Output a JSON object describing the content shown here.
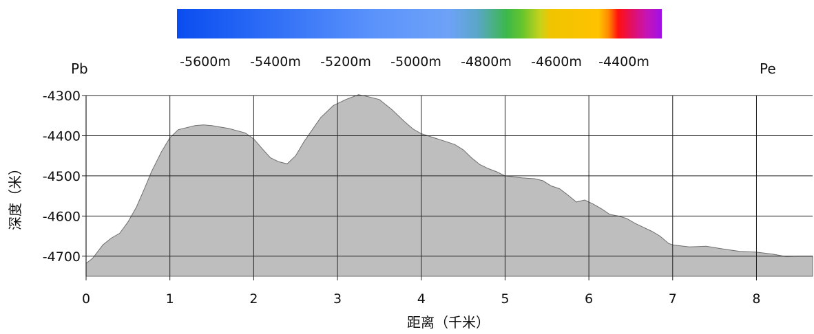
{
  "colorbar": {
    "labels": [
      "-5600m",
      "-5400m",
      "-5200m",
      "-5000m",
      "-4800m",
      "-4600m",
      "-4400m"
    ],
    "colors": [
      "#0a4cf0",
      "#2c6cf6",
      "#5a92fb",
      "#6ea2f8",
      "#5aa6c8",
      "#3cb84a",
      "#62c42e",
      "#c8d21a",
      "#f0c400",
      "#ffc200",
      "#ff8a00",
      "#ff1010",
      "#e0106a",
      "#c414b8",
      "#a010e6"
    ]
  },
  "endpoints": {
    "start": "Pb",
    "end": "Pe"
  },
  "chart_data": {
    "type": "area",
    "xlabel": "距离（千米）",
    "ylabel": "深度（米）",
    "xlim": [
      0,
      8.67
    ],
    "ylim": [
      -4750,
      -4300
    ],
    "xticks": [
      "0",
      "1",
      "2",
      "3",
      "4",
      "5",
      "6",
      "7",
      "8"
    ],
    "yticks": [
      "-4300",
      "-4400",
      "-4500",
      "-4600",
      "-4700"
    ],
    "grid": true,
    "fill_color": "#bebebe",
    "series": [
      {
        "x": [
          0,
          0.08,
          0.2,
          0.3,
          0.4,
          0.5,
          0.6,
          0.7,
          0.78,
          0.9,
          1.0,
          1.1,
          1.3,
          1.4,
          1.5,
          1.7,
          1.9,
          2.0,
          2.1,
          2.2,
          2.3,
          2.4,
          2.5,
          2.6,
          2.7,
          2.8,
          2.95,
          3.1,
          3.25,
          3.35,
          3.5,
          3.65,
          3.8,
          3.9,
          4.0,
          4.15,
          4.3,
          4.4,
          4.5,
          4.6,
          4.7,
          4.8,
          4.9,
          5.0,
          5.2,
          5.35,
          5.45,
          5.55,
          5.65,
          5.75,
          5.85,
          5.95,
          6.05,
          6.15,
          6.25,
          6.35,
          6.45,
          6.55,
          6.65,
          6.75,
          6.85,
          6.95,
          7.0,
          7.2,
          7.4,
          7.6,
          7.8,
          8.0,
          8.2,
          8.35,
          8.5,
          8.67
        ],
        "y": [
          -4718,
          -4705,
          -4672,
          -4655,
          -4643,
          -4615,
          -4578,
          -4530,
          -4490,
          -4440,
          -4405,
          -4385,
          -4375,
          -4373,
          -4375,
          -4382,
          -4393,
          -4408,
          -4432,
          -4455,
          -4465,
          -4470,
          -4450,
          -4415,
          -4385,
          -4355,
          -4325,
          -4310,
          -4298,
          -4302,
          -4310,
          -4335,
          -4365,
          -4383,
          -4395,
          -4405,
          -4415,
          -4422,
          -4435,
          -4455,
          -4472,
          -4482,
          -4490,
          -4500,
          -4505,
          -4507,
          -4512,
          -4525,
          -4532,
          -4548,
          -4565,
          -4560,
          -4570,
          -4582,
          -4596,
          -4600,
          -4606,
          -4618,
          -4628,
          -4638,
          -4650,
          -4668,
          -4672,
          -4677,
          -4675,
          -4682,
          -4688,
          -4690,
          -4695,
          -4701,
          -4700,
          -4700
        ]
      }
    ]
  }
}
